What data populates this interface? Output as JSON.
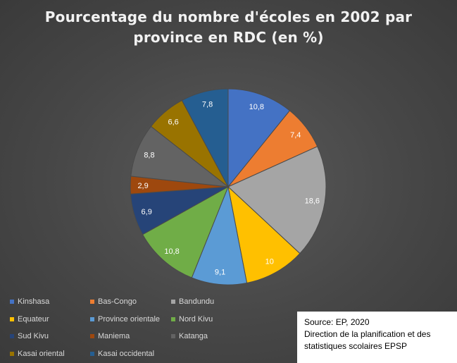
{
  "chart_data": {
    "type": "pie",
    "title": "Pourcentage du nombre d'écoles en 2002 par province en RDC (en %)",
    "title_lines": [
      "Pourcentage du nombre d'écoles en 2002 par",
      "province en RDC (en %)"
    ],
    "categories": [
      "Kinshasa",
      "Bas-Congo",
      "Bandundu",
      "Equateur",
      "Province orientale",
      "Nord Kivu",
      "Sud Kivu",
      "Maniema",
      "Katanga",
      "Kasai oriental",
      "Kasai occidental"
    ],
    "values": [
      10.8,
      7.4,
      18.6,
      10,
      9.1,
      10.8,
      6.9,
      2.9,
      8.8,
      6.6,
      7.8
    ],
    "value_labels": [
      "10,8",
      "7,4",
      "18,6",
      "10",
      "9,1",
      "10,8",
      "6,9",
      "2,9",
      "8,8",
      "6,6",
      "7,8"
    ],
    "colors": [
      "#4472c4",
      "#ed7d31",
      "#a5a5a5",
      "#ffc000",
      "#5b9bd5",
      "#70ad47",
      "#264478",
      "#9e480e",
      "#636363",
      "#997300",
      "#255e91"
    ],
    "legend_position": "bottom-left",
    "start_angle_deg": 0,
    "direction": "clockwise"
  },
  "source": {
    "line1": "Source: EP, 2020",
    "line2": "Direction de la planification et des",
    "line3": "statistiques scolaires EPSP"
  }
}
